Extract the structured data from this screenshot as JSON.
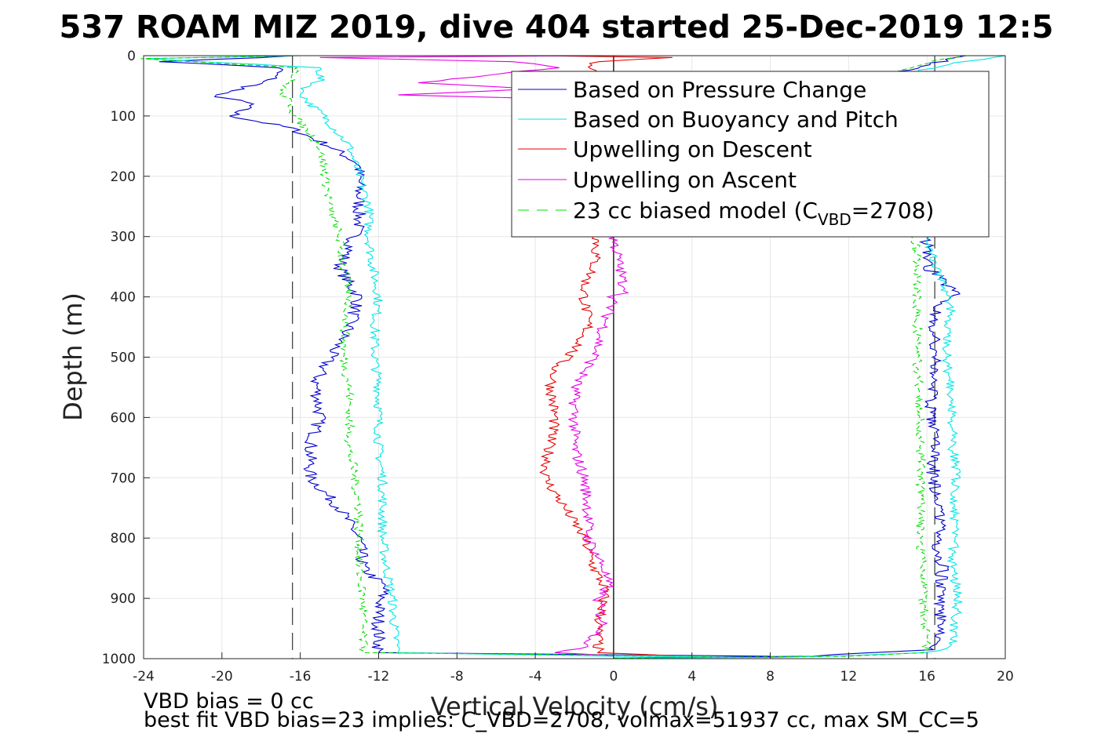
{
  "chart_data": {
    "type": "line",
    "title": "537 ROAM MIZ 2019, dive 404 started 25-Dec-2019 12:5",
    "xlabel": "Vertical Velocity (cm/s)",
    "ylabel": "Depth (m)",
    "xlim": [
      -24,
      20
    ],
    "ylim": [
      0,
      1000
    ],
    "y_reversed": true,
    "grid": true,
    "x_ticks": [
      -24,
      -20,
      -16,
      -12,
      -8,
      -4,
      0,
      4,
      8,
      12,
      16,
      20
    ],
    "y_ticks": [
      0,
      100,
      200,
      300,
      400,
      500,
      600,
      700,
      800,
      900,
      1000
    ],
    "legend_position": "top-right",
    "legend": [
      {
        "label": "Based on Pressure Change",
        "color": "#0000cc",
        "dash": false
      },
      {
        "label": "Based on Buoyancy and Pitch",
        "color": "#00e6e6",
        "dash": false
      },
      {
        "label": "Upwelling on Descent",
        "color": "#e60000",
        "dash": false
      },
      {
        "label": "Upwelling on Ascent",
        "color": "#e600e6",
        "dash": false
      },
      {
        "label_main": "23 cc biased model (C",
        "label_sub": "VBD",
        "label_end": "=2708)",
        "color": "#00dd00",
        "dash": true
      }
    ],
    "reference_lines": [
      {
        "x": -16.4,
        "style": "dashed",
        "color": "#444444"
      },
      {
        "x": 16.4,
        "style": "dashed",
        "color": "#444444"
      },
      {
        "x": 0,
        "style": "solid",
        "color": "#000000"
      }
    ],
    "series": [
      {
        "name": "Based on Pressure Change",
        "color": "#0000cc",
        "jitter": 0.35,
        "descent": [
          [
            -16,
            0
          ],
          [
            -23,
            10
          ],
          [
            -17,
            20
          ],
          [
            -17.5,
            40
          ],
          [
            -19,
            55
          ],
          [
            -20.5,
            65
          ],
          [
            -18.5,
            80
          ],
          [
            -19.5,
            100
          ],
          [
            -16.5,
            120
          ],
          [
            -14.5,
            150
          ],
          [
            -13,
            180
          ],
          [
            -13,
            230
          ],
          [
            -13,
            280
          ],
          [
            -13.5,
            320
          ],
          [
            -14,
            350
          ],
          [
            -13.5,
            380
          ],
          [
            -13,
            400
          ],
          [
            -13.5,
            450
          ],
          [
            -14.5,
            500
          ],
          [
            -15.2,
            540
          ],
          [
            -15,
            600
          ],
          [
            -15.5,
            650
          ],
          [
            -15.5,
            700
          ],
          [
            -14,
            750
          ],
          [
            -13,
            800
          ],
          [
            -12.8,
            850
          ],
          [
            -11.7,
            880
          ],
          [
            -12,
            920
          ],
          [
            -12,
            960
          ],
          [
            -12,
            990
          ],
          [
            8,
            996
          ]
        ],
        "ascent": [
          [
            0,
            999
          ],
          [
            10,
            996
          ],
          [
            16,
            985
          ],
          [
            16.8,
            960
          ],
          [
            16.6,
            900
          ],
          [
            16.8,
            850
          ],
          [
            16.5,
            800
          ],
          [
            16.8,
            750
          ],
          [
            16.3,
            700
          ],
          [
            16.4,
            650
          ],
          [
            16.2,
            600
          ],
          [
            16.3,
            550
          ],
          [
            16.4,
            500
          ],
          [
            16.4,
            450
          ],
          [
            16.5,
            420
          ],
          [
            17.2,
            400
          ],
          [
            17.5,
            395
          ],
          [
            17,
            380
          ],
          [
            16,
            350
          ],
          [
            16,
            300
          ],
          [
            16,
            50
          ],
          [
            14,
            30
          ],
          [
            16,
            15
          ],
          [
            18,
            0
          ]
        ]
      },
      {
        "name": "Based on Buoyancy and Pitch",
        "color": "#00e6e6",
        "jitter": 0.25,
        "descent": [
          [
            -16,
            0
          ],
          [
            -24,
            5
          ],
          [
            -15,
            20
          ],
          [
            -15,
            40
          ],
          [
            -16,
            60
          ],
          [
            -15.5,
            80
          ],
          [
            -14.8,
            100
          ],
          [
            -13.5,
            150
          ],
          [
            -13,
            200
          ],
          [
            -12.5,
            250
          ],
          [
            -12.5,
            300
          ],
          [
            -12.3,
            350
          ],
          [
            -12,
            400
          ],
          [
            -12.2,
            450
          ],
          [
            -12.2,
            500
          ],
          [
            -12,
            550
          ],
          [
            -12,
            600
          ],
          [
            -12,
            650
          ],
          [
            -11.8,
            700
          ],
          [
            -11.8,
            750
          ],
          [
            -11.8,
            800
          ],
          [
            -11.6,
            850
          ],
          [
            -11.3,
            900
          ],
          [
            -11.2,
            950
          ],
          [
            -11,
            990
          ],
          [
            0,
            996
          ],
          [
            8,
            998
          ]
        ],
        "ascent": [
          [
            0,
            999
          ],
          [
            8,
            998
          ],
          [
            12,
            995
          ],
          [
            16,
            990
          ],
          [
            17.3,
            980
          ],
          [
            17.4,
            950
          ],
          [
            17.6,
            900
          ],
          [
            17.3,
            850
          ],
          [
            17.4,
            800
          ],
          [
            17.4,
            750
          ],
          [
            17.5,
            700
          ],
          [
            17.3,
            650
          ],
          [
            17.3,
            600
          ],
          [
            17.2,
            550
          ],
          [
            17,
            500
          ],
          [
            17,
            450
          ],
          [
            17.2,
            420
          ],
          [
            17,
            400
          ],
          [
            16.8,
            380
          ],
          [
            16.5,
            350
          ],
          [
            16,
            300
          ],
          [
            16,
            50
          ],
          [
            15,
            30
          ],
          [
            17,
            15
          ],
          [
            20,
            0
          ]
        ]
      },
      {
        "name": "Upwelling on Descent",
        "color": "#e60000",
        "jitter": 0.3,
        "descent": [
          [
            -4,
            0
          ],
          [
            3,
            3
          ],
          [
            -1,
            10
          ],
          [
            -1,
            30
          ],
          [
            -1,
            60
          ],
          [
            -0.8,
            100
          ],
          [
            -0.8,
            200
          ],
          [
            -0.8,
            300
          ],
          [
            -1,
            350
          ],
          [
            -1.5,
            380
          ],
          [
            -1.5,
            400
          ],
          [
            -1.3,
            450
          ],
          [
            -1.8,
            480
          ],
          [
            -3,
            520
          ],
          [
            -3.2,
            550
          ],
          [
            -3,
            600
          ],
          [
            -3.3,
            650
          ],
          [
            -3.5,
            700
          ],
          [
            -2.5,
            750
          ],
          [
            -1.5,
            800
          ],
          [
            -1,
            850
          ],
          [
            -0.5,
            880
          ],
          [
            -0.5,
            900
          ],
          [
            -0.8,
            950
          ],
          [
            -0.8,
            990
          ],
          [
            3,
            995
          ]
        ]
      },
      {
        "name": "Upwelling on Ascent",
        "color": "#e600e6",
        "jitter": 0.3,
        "descent": [
          [
            -1,
            0
          ],
          [
            -15,
            3
          ],
          [
            -5,
            10
          ],
          [
            -3,
            20
          ],
          [
            -10,
            45
          ],
          [
            -4,
            55
          ],
          [
            -11,
            65
          ],
          [
            -5,
            70
          ],
          [
            -1.5,
            80
          ],
          [
            -1,
            100
          ],
          [
            -0.5,
            200
          ],
          [
            0,
            300
          ],
          [
            0.3,
            350
          ],
          [
            0.5,
            380
          ],
          [
            0.8,
            390
          ],
          [
            0,
            400
          ],
          [
            -0.5,
            450
          ],
          [
            -1,
            500
          ],
          [
            -2,
            550
          ],
          [
            -2,
            600
          ],
          [
            -2,
            650
          ],
          [
            -1.5,
            700
          ],
          [
            -1.3,
            750
          ],
          [
            -1.3,
            800
          ],
          [
            -0.5,
            850
          ],
          [
            -0.3,
            880
          ],
          [
            -0.8,
            900
          ],
          [
            -0.5,
            950
          ],
          [
            -1.5,
            980
          ],
          [
            -3,
            990
          ],
          [
            0,
            995
          ]
        ]
      },
      {
        "name": "23 cc biased model (CVBD=2708)",
        "color": "#00dd00",
        "jitter": 0.25,
        "dashed": true,
        "descent": [
          [
            -16,
            0
          ],
          [
            -24,
            5
          ],
          [
            -16,
            20
          ],
          [
            -16.5,
            40
          ],
          [
            -17,
            60
          ],
          [
            -16.5,
            80
          ],
          [
            -16.3,
            100
          ],
          [
            -15,
            150
          ],
          [
            -14.7,
            200
          ],
          [
            -14.5,
            250
          ],
          [
            -14,
            300
          ],
          [
            -13.8,
            350
          ],
          [
            -13.5,
            400
          ],
          [
            -13.7,
            450
          ],
          [
            -13.8,
            500
          ],
          [
            -13.5,
            550
          ],
          [
            -13.5,
            600
          ],
          [
            -13.5,
            650
          ],
          [
            -13.2,
            700
          ],
          [
            -13,
            750
          ],
          [
            -13,
            800
          ],
          [
            -13,
            850
          ],
          [
            -12.8,
            900
          ],
          [
            -12.8,
            950
          ],
          [
            -12.8,
            990
          ],
          [
            5,
            996
          ]
        ],
        "ascent": [
          [
            0,
            999
          ],
          [
            12,
            996
          ],
          [
            16,
            990
          ],
          [
            15.9,
            950
          ],
          [
            15.8,
            900
          ],
          [
            15.8,
            850
          ],
          [
            15.6,
            800
          ],
          [
            15.7,
            750
          ],
          [
            15.7,
            700
          ],
          [
            15.7,
            650
          ],
          [
            15.6,
            600
          ],
          [
            15.6,
            550
          ],
          [
            15.5,
            500
          ],
          [
            15.5,
            450
          ],
          [
            15.5,
            400
          ],
          [
            15.6,
            350
          ],
          [
            15.3,
            300
          ],
          [
            15.3,
            50
          ],
          [
            14,
            30
          ],
          [
            15.5,
            15
          ],
          [
            18,
            0
          ]
        ]
      }
    ]
  },
  "notes": {
    "line1": "VBD bias = 0 cc",
    "line2": "best fit VBD bias=23 implies: C_VBD=2708, volmax=51937 cc, max SM_CC=5"
  }
}
